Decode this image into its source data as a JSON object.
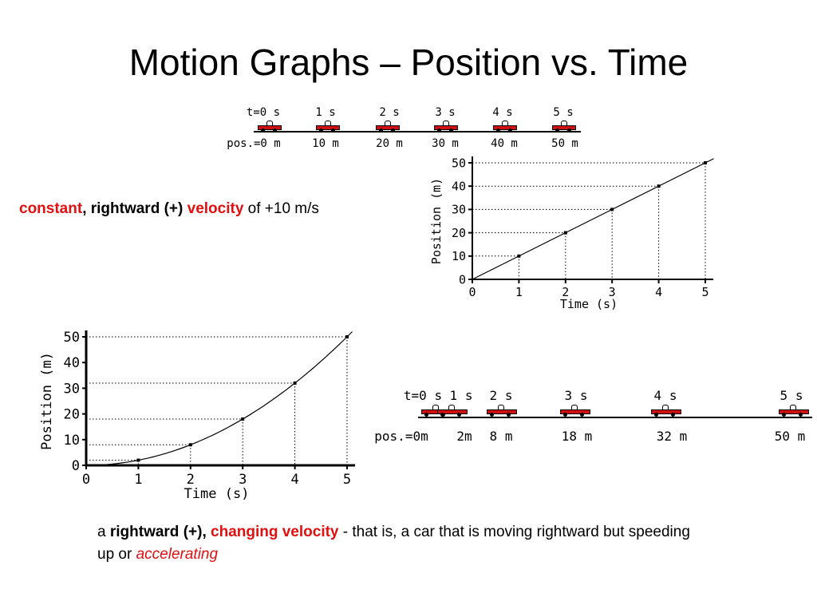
{
  "slide": {
    "title": "Motion Graphs – Position vs. Time"
  },
  "strip_top": {
    "times": [
      "t=0 s",
      "1 s",
      "2 s",
      "3 s",
      "4 s",
      "5 s"
    ],
    "positions": [
      "pos.=0 m",
      "10 m",
      "20 m",
      "30 m",
      "40 m",
      "50 m"
    ]
  },
  "strip_bottom": {
    "times": [
      "t=0 s",
      "1 s",
      "2 s",
      "3 s",
      "4 s",
      "5 s"
    ],
    "positions": [
      "pos.=0m",
      "2m",
      "8 m",
      "18 m",
      "32 m",
      "50 m"
    ]
  },
  "caption_top": {
    "part1": "constant",
    "part2": ", rightward (+)",
    "part3": "velocity",
    "part4": "of +10 m/s"
  },
  "caption_bottom": {
    "part1": "a",
    "part2": "rightward (+),",
    "part3": "changing velocity",
    "part4": "- that is, a car that is moving rightward but speeding up or",
    "part5": "accelerating"
  },
  "colors": {
    "emphasis": "#e01010",
    "car_body": "#d01010"
  },
  "chart_data": [
    {
      "type": "line",
      "title": "",
      "xlabel": "Time (s)",
      "ylabel": "Position (m)",
      "x": [
        0,
        1,
        2,
        3,
        4,
        5
      ],
      "y": [
        0,
        10,
        20,
        30,
        40,
        50
      ],
      "xticks": [
        "0",
        "1",
        "2",
        "3",
        "4",
        "5"
      ],
      "yticks": [
        "0",
        "10",
        "20",
        "30",
        "40",
        "50"
      ],
      "xlim": [
        0,
        5
      ],
      "ylim": [
        0,
        50
      ],
      "grid": "dotted drop-lines at data points"
    },
    {
      "type": "line",
      "title": "",
      "xlabel": "Time (s)",
      "ylabel": "Position (m)",
      "x": [
        0,
        1,
        2,
        3,
        4,
        5
      ],
      "y": [
        0,
        2,
        8,
        18,
        32,
        50
      ],
      "xticks": [
        "0",
        "1",
        "2",
        "3",
        "4",
        "5"
      ],
      "yticks": [
        "0",
        "10",
        "20",
        "30",
        "40",
        "50"
      ],
      "xlim": [
        0,
        5
      ],
      "ylim": [
        0,
        50
      ],
      "grid": "dotted drop-lines at data points"
    }
  ]
}
